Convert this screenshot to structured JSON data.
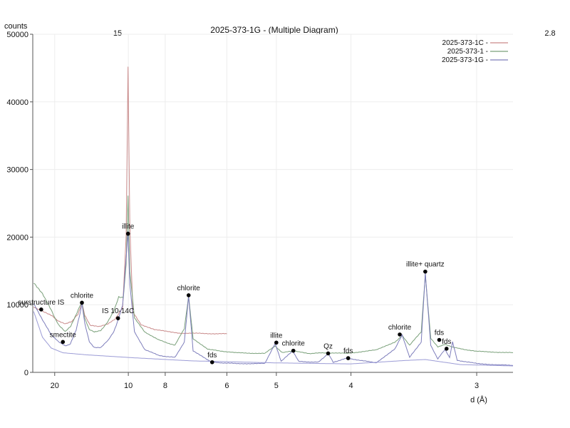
{
  "chart_data": {
    "type": "line",
    "title": "2025-373-1G  -  (Multiple Diagram)",
    "ylabel": "counts",
    "xlabel": "d (Å)",
    "top_labels": [
      "15",
      "2.8"
    ],
    "y_ticks": [
      0,
      10000,
      20000,
      30000,
      40000,
      50000
    ],
    "x_ticks": [
      "20",
      "10",
      "8",
      "6",
      "5",
      "4",
      "3"
    ],
    "x_tick_values": [
      20,
      10,
      8,
      6,
      5,
      4,
      3
    ],
    "ylim": [
      0,
      50000
    ],
    "xlim_d": [
      28.5,
      2.8
    ],
    "legend_position": "top-right",
    "series": [
      {
        "name": "2025-373-1C  -",
        "color": "#c98a8a",
        "points": [
          [
            28,
            9600
          ],
          [
            24,
            9000
          ],
          [
            21,
            8400
          ],
          [
            19,
            7600
          ],
          [
            17.5,
            7200
          ],
          [
            16.2,
            7500
          ],
          [
            15.2,
            8600
          ],
          [
            14.6,
            10200
          ],
          [
            14.2,
            8500
          ],
          [
            13.5,
            7000
          ],
          [
            12.5,
            6800
          ],
          [
            11.6,
            7200
          ],
          [
            11.0,
            7800
          ],
          [
            10.4,
            9500
          ],
          [
            10.15,
            20000
          ],
          [
            10.02,
            45200
          ],
          [
            9.9,
            22000
          ],
          [
            9.7,
            9000
          ],
          [
            9.2,
            7000
          ],
          [
            8.5,
            6300
          ],
          [
            7.4,
            5800
          ],
          [
            6.0,
            5700
          ]
        ]
      },
      {
        "name": "2025-373-1  -",
        "color": "#7aa07a",
        "points": [
          [
            28,
            13200
          ],
          [
            24,
            11600
          ],
          [
            21,
            9200
          ],
          [
            19,
            7000
          ],
          [
            17.5,
            6000
          ],
          [
            16.4,
            6800
          ],
          [
            15.5,
            8500
          ],
          [
            14.8,
            10000
          ],
          [
            14.6,
            10300
          ],
          [
            14.2,
            8000
          ],
          [
            13.6,
            6300
          ],
          [
            13.0,
            6000
          ],
          [
            12.3,
            6200
          ],
          [
            11.6,
            7500
          ],
          [
            11.1,
            9000
          ],
          [
            10.7,
            11200
          ],
          [
            10.35,
            11000
          ],
          [
            10.15,
            16000
          ],
          [
            10.02,
            26000
          ],
          [
            9.9,
            15000
          ],
          [
            9.6,
            8000
          ],
          [
            9.0,
            6000
          ],
          [
            8.3,
            4800
          ],
          [
            7.6,
            4000
          ],
          [
            7.25,
            6500
          ],
          [
            7.1,
            11300
          ],
          [
            6.95,
            5000
          ],
          [
            6.5,
            3400
          ],
          [
            5.8,
            2900
          ],
          [
            5.2,
            2800
          ],
          [
            5.02,
            3900
          ],
          [
            4.9,
            2900
          ],
          [
            4.72,
            3200
          ],
          [
            4.5,
            2800
          ],
          [
            4.26,
            2900
          ],
          [
            4.05,
            2800
          ],
          [
            3.75,
            3300
          ],
          [
            3.58,
            4500
          ],
          [
            3.52,
            5400
          ],
          [
            3.46,
            4000
          ],
          [
            3.37,
            6000
          ],
          [
            3.34,
            14400
          ],
          [
            3.3,
            5000
          ],
          [
            3.25,
            3800
          ],
          [
            3.2,
            4100
          ],
          [
            3.15,
            3700
          ],
          [
            3.0,
            3100
          ],
          [
            2.8,
            2900
          ]
        ]
      },
      {
        "name": "2025-373-1G  -",
        "color": "#7d7dbb",
        "points": [
          [
            28,
            10200
          ],
          [
            24,
            7800
          ],
          [
            21,
            5600
          ],
          [
            19,
            4500
          ],
          [
            17.5,
            3900
          ],
          [
            16.5,
            4200
          ],
          [
            15.5,
            6200
          ],
          [
            14.8,
            9000
          ],
          [
            14.6,
            10300
          ],
          [
            14.2,
            7200
          ],
          [
            13.6,
            4500
          ],
          [
            13.0,
            3700
          ],
          [
            12.3,
            3700
          ],
          [
            11.6,
            4700
          ],
          [
            11.1,
            6000
          ],
          [
            10.7,
            8000
          ],
          [
            10.4,
            10000
          ],
          [
            10.15,
            17000
          ],
          [
            10.02,
            20800
          ],
          [
            9.9,
            13000
          ],
          [
            9.6,
            6000
          ],
          [
            9.0,
            3400
          ],
          [
            8.3,
            2500
          ],
          [
            7.6,
            2200
          ],
          [
            7.25,
            4500
          ],
          [
            7.1,
            11300
          ],
          [
            6.95,
            3200
          ],
          [
            6.5,
            1800
          ],
          [
            6.38,
            1500
          ],
          [
            5.8,
            1300
          ],
          [
            5.2,
            1300
          ],
          [
            5.02,
            4300
          ],
          [
            4.92,
            1600
          ],
          [
            4.74,
            3200
          ],
          [
            4.65,
            1600
          ],
          [
            4.38,
            1500
          ],
          [
            4.26,
            2800
          ],
          [
            4.2,
            1500
          ],
          [
            4.04,
            2100
          ],
          [
            3.75,
            1400
          ],
          [
            3.58,
            3500
          ],
          [
            3.52,
            5500
          ],
          [
            3.46,
            2200
          ],
          [
            3.37,
            4500
          ],
          [
            3.34,
            14700
          ],
          [
            3.3,
            4000
          ],
          [
            3.25,
            2000
          ],
          [
            3.2,
            3400
          ],
          [
            3.17,
            2200
          ],
          [
            3.15,
            4500
          ],
          [
            3.12,
            1800
          ],
          [
            3.0,
            1300
          ],
          [
            2.8,
            1000
          ]
        ]
      },
      {
        "name": "",
        "color": "#9c9cd6",
        "points": [
          [
            28,
            9000
          ],
          [
            24,
            5200
          ],
          [
            21,
            3600
          ],
          [
            18,
            2900
          ],
          [
            14,
            2600
          ],
          [
            10,
            2200
          ],
          [
            7,
            1700
          ],
          [
            5,
            1400
          ],
          [
            4,
            1250
          ],
          [
            3.5,
            1750
          ],
          [
            3.34,
            1900
          ],
          [
            3.1,
            1150
          ],
          [
            2.8,
            950
          ]
        ]
      }
    ],
    "annotations": [
      {
        "label": "illite",
        "d": 10.02,
        "y": 20500
      },
      {
        "label": "chlorite",
        "d": 14.6,
        "y": 10300
      },
      {
        "label": "IS 10-14C",
        "d": 10.75,
        "y": 8000
      },
      {
        "label": "surstructure IS",
        "d": 24.5,
        "y": 9300
      },
      {
        "label": "smectite",
        "d": 18.0,
        "y": 4500
      },
      {
        "label": "chlorite",
        "d": 7.1,
        "y": 11400
      },
      {
        "label": "fds",
        "d": 6.38,
        "y": 1500
      },
      {
        "label": "illite",
        "d": 5.0,
        "y": 4400
      },
      {
        "label": "chlorite",
        "d": 4.73,
        "y": 3200
      },
      {
        "label": "Qz",
        "d": 4.26,
        "y": 2800
      },
      {
        "label": "fds",
        "d": 4.03,
        "y": 2100
      },
      {
        "label": "chlorite",
        "d": 3.54,
        "y": 5600
      },
      {
        "label": "illite+ quartz",
        "d": 3.34,
        "y": 14900
      },
      {
        "label": "fds",
        "d": 3.19,
        "y": 3500
      },
      {
        "label": "fds",
        "d": 3.24,
        "y": 4800
      }
    ]
  }
}
